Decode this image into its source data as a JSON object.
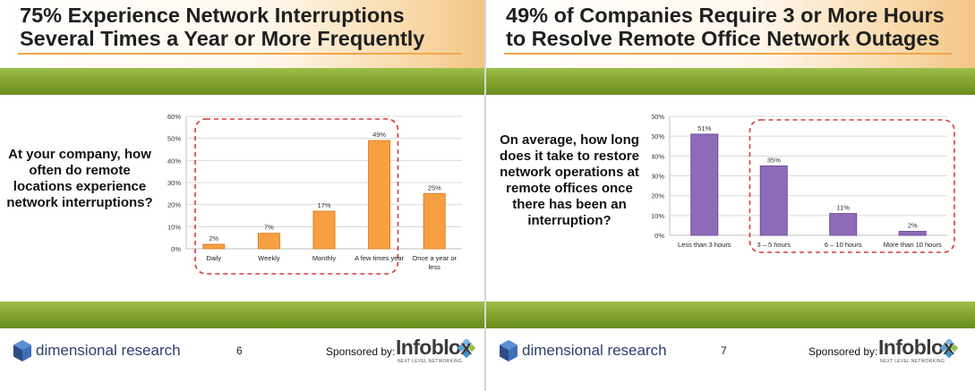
{
  "slides": [
    {
      "title_line1": "75% Experience Network Interruptions",
      "title_line2": "Several Times a Year or More Frequently",
      "question": "At your company, how often do remote locations experience network interruptions?",
      "brand": "dimensional research",
      "page": "6",
      "sponsor_label": "Sponsored by:",
      "sponsor_name": "Infoblox",
      "sponsor_tagline": "NEXT LEVEL NETWORKING"
    },
    {
      "title_line1": "49% of Companies Require 3 or More Hours",
      "title_line2": "to Resolve Remote Office Network Outages",
      "question": "On average, how long does it take to restore network operations at remote offices once there has been an interruption?",
      "brand": "dimensional research",
      "page": "7",
      "sponsor_label": "Sponsored by:",
      "sponsor_name": "Infoblox",
      "sponsor_tagline": "NEXT LEVEL NETWORKING"
    }
  ],
  "colors": {
    "orange_bar": "#f7a043",
    "purple_bar": "#8e6bb8",
    "highlight_dash": "#d33a3a",
    "green_band": "#7ea22b"
  },
  "chart_data": [
    {
      "type": "bar",
      "categories": [
        "Daily",
        "Weekly",
        "Monthly",
        "A few times year",
        "Once a year or less"
      ],
      "values": [
        2,
        7,
        17,
        49,
        25
      ],
      "value_labels": [
        "2%",
        "7%",
        "17%",
        "49%",
        "25%"
      ],
      "y_ticks": [
        "0%",
        "10%",
        "20%",
        "30%",
        "40%",
        "50%",
        "60%"
      ],
      "ylim": [
        0,
        60
      ],
      "grid": true,
      "color": "#f7a043",
      "highlighted_categories": [
        "Daily",
        "Weekly",
        "Monthly",
        "A few times year"
      ]
    },
    {
      "type": "bar",
      "categories": [
        "Less than 3 hours",
        "3 – 5 hours",
        "6 – 10 hours",
        "More than 10 hours"
      ],
      "values": [
        51,
        35,
        11,
        2
      ],
      "value_labels": [
        "51%",
        "35%",
        "11%",
        "2%"
      ],
      "y_ticks": [
        "0%",
        "10%",
        "20%",
        "30%",
        "40%",
        "50%",
        "60%"
      ],
      "ylim": [
        0,
        60
      ],
      "grid": true,
      "color": "#8e6bb8",
      "highlighted_categories": [
        "3 – 5 hours",
        "6 – 10 hours",
        "More than 10 hours"
      ]
    }
  ]
}
